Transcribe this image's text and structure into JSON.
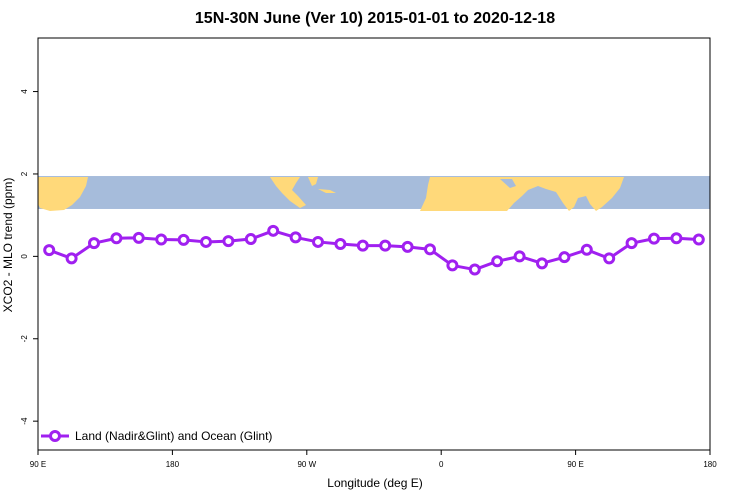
{
  "chart_data": {
    "type": "line",
    "title": "15N-30N June (Ver 10)   2015-01-01 to 2020-12-18",
    "xlabel": "Longitude (deg E)",
    "ylabel": "XCO2 - MLO trend (ppm)",
    "xlim": [
      90,
      390
    ],
    "ylim": [
      -4.7,
      5.3
    ],
    "x_ticks": [
      {
        "value": 90,
        "label": "90 E"
      },
      {
        "value": 150,
        "label": "180"
      },
      {
        "value": 210,
        "label": "90 W"
      },
      {
        "value": 270,
        "label": "0"
      },
      {
        "value": 330,
        "label": "90 E"
      },
      {
        "value": 390,
        "label": "180"
      }
    ],
    "y_ticks": [
      {
        "value": 4,
        "label": "4"
      },
      {
        "value": 2,
        "label": "2"
      },
      {
        "value": 0,
        "label": "0"
      },
      {
        "value": -2,
        "label": "-2"
      },
      {
        "value": -4,
        "label": "-4"
      }
    ],
    "map_band": {
      "y_range": [
        1.15,
        1.95
      ],
      "ocean_color": "#a6bcdb",
      "land_color": "#ffd97a"
    },
    "series": [
      {
        "name": "Land (Nadir&Glint) and Ocean (Glint)",
        "color": "#a020f0",
        "x": [
          95,
          105,
          115,
          125,
          135,
          145,
          155,
          165,
          175,
          185,
          195,
          205,
          215,
          225,
          235,
          245,
          255,
          265,
          275,
          285,
          295,
          305,
          315,
          325,
          335,
          345,
          355,
          365,
          375,
          385
        ],
        "y": [
          0.15,
          -0.05,
          0.32,
          0.44,
          0.45,
          0.41,
          0.4,
          0.35,
          0.37,
          0.42,
          0.62,
          0.46,
          0.35,
          0.3,
          0.26,
          0.26,
          0.23,
          0.17,
          -0.22,
          -0.32,
          -0.12,
          0.0,
          -0.17,
          -0.02,
          0.16,
          -0.05,
          0.32,
          0.43,
          0.44,
          0.41
        ]
      }
    ],
    "legend": {
      "position": "bottom-left"
    }
  }
}
